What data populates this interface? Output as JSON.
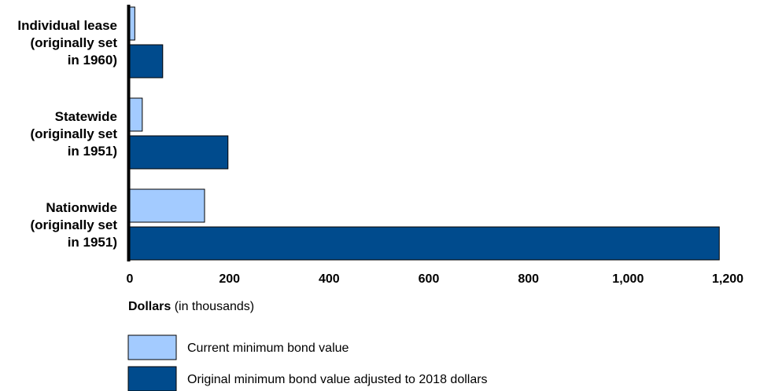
{
  "chart_data": {
    "type": "bar",
    "orientation": "horizontal",
    "categories": [
      [
        "Individual lease",
        "(originally set",
        "in 1960)"
      ],
      [
        "Statewide",
        "(originally set",
        "in 1951)"
      ],
      [
        "Nationwide",
        "(originally set",
        "in 1951)"
      ]
    ],
    "series": [
      {
        "name": "Current minimum bond value",
        "values": [
          10,
          25,
          150
        ],
        "color": "#a3cbff"
      },
      {
        "name": "Original minimum bond value adjusted to 2018 dollars",
        "values": [
          66,
          197,
          1183
        ],
        "color": "#004b8d"
      }
    ],
    "xlabel_bold": "Dollars",
    "xlabel_rest": " (in thousands)",
    "xlim": [
      0,
      1200
    ],
    "xticks": [
      0,
      200,
      400,
      600,
      800,
      1000,
      1200
    ],
    "xtick_labels": [
      "0",
      "200",
      "400",
      "600",
      "800",
      "1,000",
      "1,200"
    ],
    "grid": false,
    "legend_position": "bottom-left"
  }
}
